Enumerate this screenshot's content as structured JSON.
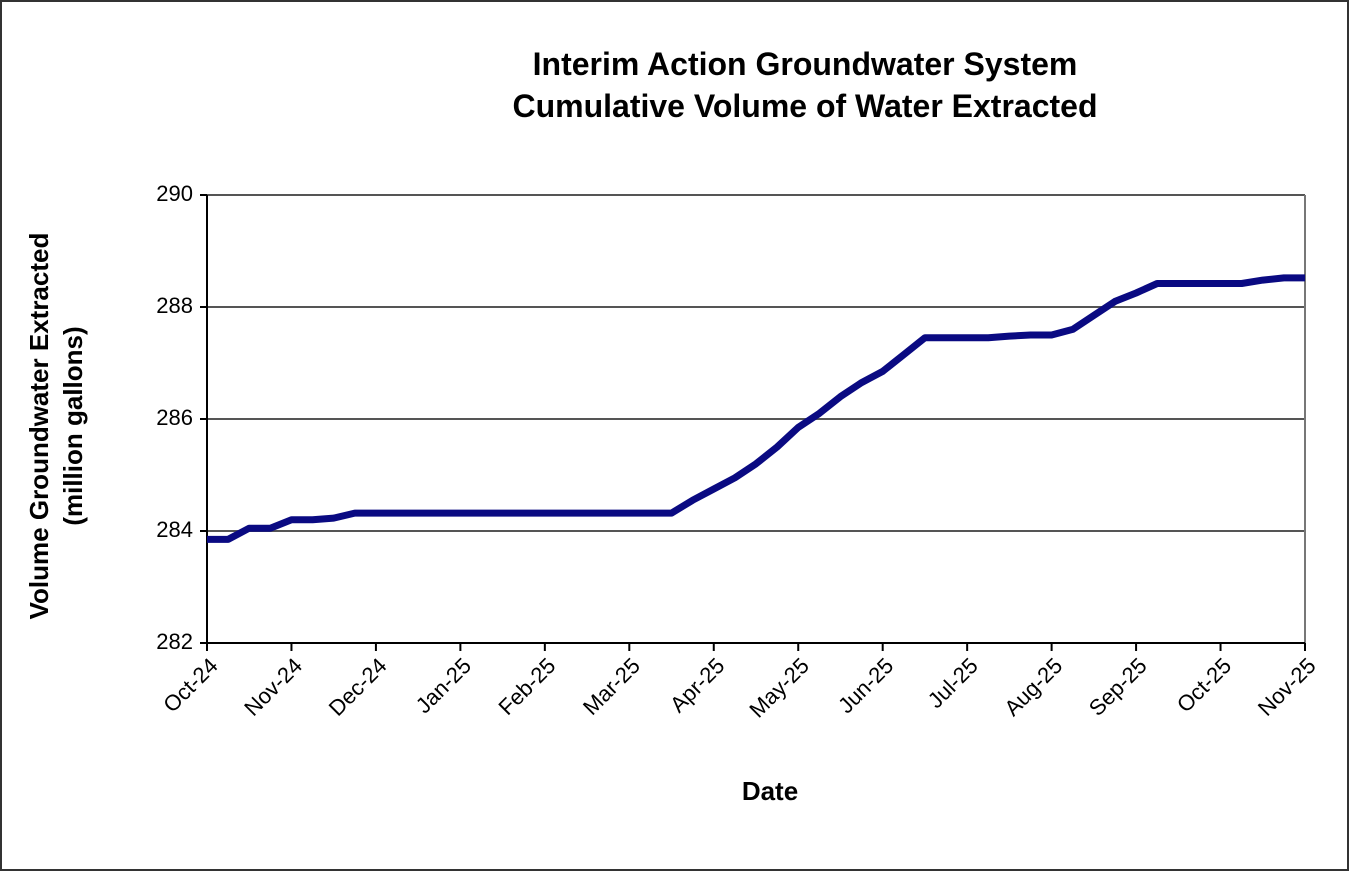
{
  "chart_data": {
    "type": "line",
    "title": "Interim Action Groundwater System",
    "subtitle": "Cumulative Volume of Water Extracted",
    "xlabel": "Date",
    "ylabel": [
      "Volume Groundwater Extracted",
      "(million gallons)"
    ],
    "categories": [
      "Oct-24",
      null,
      null,
      null,
      "Nov-24",
      null,
      null,
      null,
      "Dec-24",
      null,
      null,
      null,
      "Jan-25",
      null,
      null,
      null,
      "Feb-25",
      null,
      null,
      null,
      "Mar-25",
      null,
      null,
      null,
      "Apr-25",
      null,
      null,
      null,
      "May-25",
      null,
      null,
      null,
      "Jun-25",
      null,
      null,
      null,
      "Jul-25",
      null,
      null,
      null,
      "Aug-25",
      null,
      null,
      null,
      "Sep-25",
      null,
      null,
      null,
      "Oct-25",
      null,
      null,
      null,
      "Nov-25"
    ],
    "series": [
      {
        "name": "Cumulative Volume",
        "color": "#0a0a82",
        "values": [
          283.85,
          283.85,
          284.05,
          284.05,
          284.2,
          284.2,
          284.23,
          284.32,
          284.32,
          284.32,
          284.32,
          284.32,
          284.32,
          284.32,
          284.32,
          284.32,
          284.32,
          284.32,
          284.32,
          284.32,
          284.32,
          284.32,
          284.32,
          284.55,
          284.75,
          284.95,
          285.2,
          285.5,
          285.85,
          286.1,
          286.4,
          286.65,
          286.85,
          287.15,
          287.45,
          287.45,
          287.45,
          287.45,
          287.48,
          287.5,
          287.5,
          287.6,
          287.85,
          288.1,
          288.25,
          288.42,
          288.42,
          288.42,
          288.42,
          288.42,
          288.48,
          288.52,
          288.52
        ]
      }
    ],
    "ylim": [
      282,
      290
    ],
    "yticks": [
      282,
      284,
      286,
      288,
      290
    ],
    "grid": true
  }
}
